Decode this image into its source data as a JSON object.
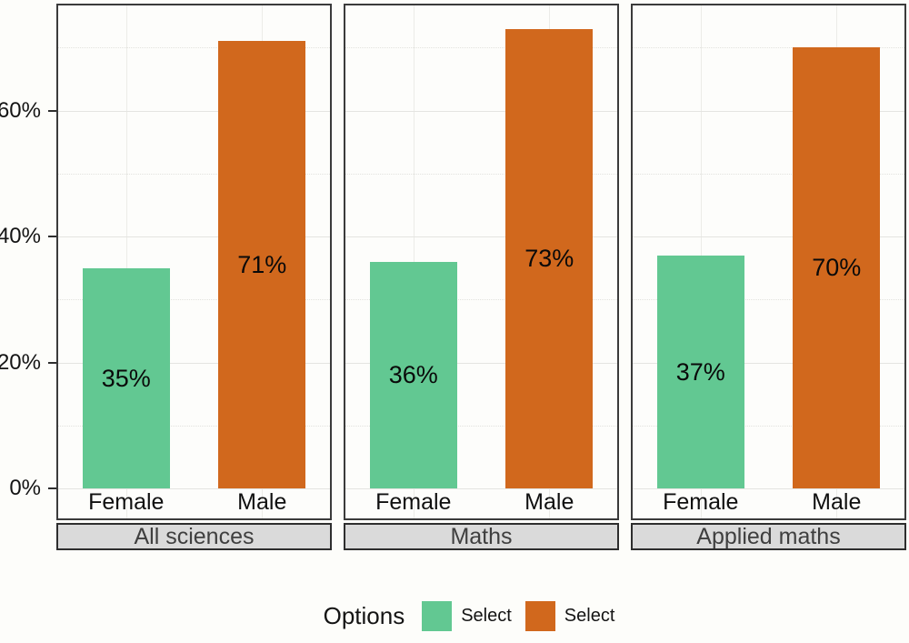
{
  "chart_data": {
    "type": "bar",
    "title": "",
    "categories": [
      "Female",
      "Male"
    ],
    "facets": [
      {
        "label": "All sciences",
        "values": [
          35,
          71
        ],
        "value_labels": [
          "35%",
          "71%"
        ]
      },
      {
        "label": "Maths",
        "values": [
          36,
          73
        ],
        "value_labels": [
          "36%",
          "73%"
        ]
      },
      {
        "label": "Applied maths",
        "values": [
          37,
          70
        ],
        "value_labels": [
          "37%",
          "70%"
        ]
      }
    ],
    "bar_colors": [
      "#62C892",
      "#D1681D"
    ],
    "y_ticks": [
      {
        "label": "0%",
        "value": 0
      },
      {
        "label": "20%",
        "value": 20
      },
      {
        "label": "40%",
        "value": 40
      },
      {
        "label": "60%",
        "value": 60
      }
    ],
    "y_minor": [
      10,
      30,
      50,
      70
    ],
    "ylim": [
      -4.8,
      76.7
    ],
    "grid": true,
    "legend_position": "bottom",
    "legend": {
      "title": "Options",
      "items": [
        {
          "label": "Select",
          "color": "#62C892"
        },
        {
          "label": "Select",
          "color": "#D1681D"
        }
      ]
    },
    "colors": {
      "panel_border": "#3B3B3B",
      "strip_bg": "#DADADA",
      "strip_text": "#3F3F3F",
      "grid_major": "#E4E4E1",
      "grid_minor": "#E2E2DE",
      "background": "#FDFDFA"
    }
  }
}
